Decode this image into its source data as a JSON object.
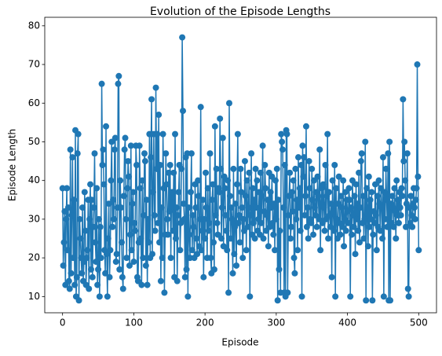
{
  "chart_data": {
    "type": "line",
    "title": "Evolution of the Episode Lengths",
    "x_label": "Episode",
    "y_label": "Episode Length",
    "color": "#1f77b4",
    "markers": true,
    "xlim": [
      -25,
      525
    ],
    "xticks": [
      0,
      100,
      200,
      300,
      400,
      500
    ],
    "ylim": [
      5.8,
      82.2
    ],
    "yticks": [
      10,
      20,
      30,
      40,
      50,
      60,
      70,
      80
    ],
    "x": [
      0,
      1,
      2,
      3,
      4,
      5,
      6,
      7,
      8,
      9,
      10,
      11,
      12,
      13,
      14,
      15,
      16,
      17,
      18,
      19,
      20,
      21,
      22,
      23,
      24,
      25,
      26,
      27,
      28,
      29,
      30,
      31,
      32,
      33,
      34,
      35,
      36,
      37,
      38,
      39,
      40,
      41,
      42,
      43,
      44,
      45,
      46,
      47,
      48,
      49,
      50,
      51,
      52,
      53,
      54,
      55,
      56,
      57,
      58,
      59,
      60,
      61,
      62,
      63,
      64,
      65,
      66,
      67,
      68,
      69,
      70,
      71,
      72,
      73,
      74,
      75,
      76,
      77,
      78,
      79,
      80,
      81,
      82,
      83,
      84,
      85,
      86,
      87,
      88,
      89,
      90,
      91,
      92,
      93,
      94,
      95,
      96,
      97,
      98,
      99,
      100,
      101,
      102,
      103,
      104,
      105,
      106,
      107,
      108,
      109,
      110,
      111,
      112,
      113,
      114,
      115,
      116,
      117,
      118,
      119,
      120,
      121,
      122,
      123,
      124,
      125,
      126,
      127,
      128,
      129,
      130,
      131,
      132,
      133,
      134,
      135,
      136,
      137,
      138,
      139,
      140,
      141,
      142,
      143,
      144,
      145,
      146,
      147,
      148,
      149,
      150,
      151,
      152,
      153,
      154,
      155,
      156,
      157,
      158,
      159,
      160,
      161,
      162,
      163,
      164,
      165,
      166,
      167,
      168,
      169,
      170,
      171,
      172,
      173,
      174,
      175,
      176,
      177,
      178,
      179,
      180,
      181,
      182,
      183,
      184,
      185,
      186,
      187,
      188,
      189,
      190,
      191,
      192,
      193,
      194,
      195,
      196,
      197,
      198,
      199,
      200,
      201,
      202,
      203,
      204,
      205,
      206,
      207,
      208,
      209,
      210,
      211,
      212,
      213,
      214,
      215,
      216,
      217,
      218,
      219,
      220,
      221,
      222,
      223,
      224,
      225,
      226,
      227,
      228,
      229,
      230,
      231,
      232,
      233,
      234,
      235,
      236,
      237,
      238,
      239,
      240,
      241,
      242,
      243,
      244,
      245,
      246,
      247,
      248,
      249,
      250,
      251,
      252,
      253,
      254,
      255,
      256,
      257,
      258,
      259,
      260,
      261,
      262,
      263,
      264,
      265,
      266,
      267,
      268,
      269,
      270,
      271,
      272,
      273,
      274,
      275,
      276,
      277,
      278,
      279,
      280,
      281,
      282,
      283,
      284,
      285,
      286,
      287,
      288,
      289,
      290,
      291,
      292,
      293,
      294,
      295,
      296,
      297,
      298,
      299,
      300,
      301,
      302,
      303,
      304,
      305,
      306,
      307,
      308,
      309,
      310,
      311,
      312,
      313,
      314,
      315,
      316,
      317,
      318,
      319,
      320,
      321,
      322,
      323,
      324,
      325,
      326,
      327,
      328,
      329,
      330,
      331,
      332,
      333,
      334,
      335,
      336,
      337,
      338,
      339,
      340,
      341,
      342,
      343,
      344,
      345,
      346,
      347,
      348,
      349,
      350,
      351,
      352,
      353,
      354,
      355,
      356,
      357,
      358,
      359,
      360,
      361,
      362,
      363,
      364,
      365,
      366,
      367,
      368,
      369,
      370,
      371,
      372,
      373,
      374,
      375,
      376,
      377,
      378,
      379,
      380,
      381,
      382,
      383,
      384,
      385,
      386,
      387,
      388,
      389,
      390,
      391,
      392,
      393,
      394,
      395,
      396,
      397,
      398,
      399,
      400,
      401,
      402,
      403,
      404,
      405,
      406,
      407,
      408,
      409,
      410,
      411,
      412,
      413,
      414,
      415,
      416,
      417,
      418,
      419,
      420,
      421,
      422,
      423,
      424,
      425,
      426,
      427,
      428,
      429,
      430,
      431,
      432,
      433,
      434,
      435,
      436,
      437,
      438,
      439,
      440,
      441,
      442,
      443,
      444,
      445,
      446,
      447,
      448,
      449,
      450,
      451,
      452,
      453,
      454,
      455,
      456,
      457,
      458,
      459,
      460,
      461,
      462,
      463,
      464,
      465,
      466,
      467,
      468,
      469,
      470,
      471,
      472,
      473,
      474,
      475,
      476,
      477,
      478,
      479,
      480,
      481,
      482,
      483,
      484,
      485,
      486,
      487,
      488,
      489,
      490,
      491,
      492,
      493,
      494,
      495,
      496,
      497,
      498,
      499,
      500
    ],
    "values": [
      38,
      18,
      24,
      32,
      13,
      30,
      38,
      22,
      33,
      14,
      12,
      48,
      16,
      31,
      46,
      20,
      35,
      13,
      53,
      10,
      15,
      47,
      52,
      9,
      30,
      25,
      20,
      16,
      33,
      14,
      19,
      37,
      27,
      13,
      20,
      22,
      35,
      12,
      30,
      39,
      17,
      35,
      15,
      28,
      33,
      47,
      24,
      19,
      38,
      13,
      17,
      30,
      10,
      28,
      20,
      65,
      44,
      48,
      39,
      22,
      16,
      54,
      21,
      10,
      25,
      34,
      15,
      22,
      40,
      50,
      28,
      35,
      30,
      48,
      51,
      19,
      21,
      33,
      65,
      67,
      17,
      40,
      33,
      24,
      15,
      12,
      36,
      48,
      51,
      30,
      20,
      38,
      45,
      41,
      18,
      26,
      49,
      22,
      34,
      37,
      19,
      29,
      27,
      49,
      44,
      15,
      14,
      24,
      49,
      38,
      25,
      13,
      40,
      20,
      31,
      47,
      45,
      18,
      35,
      13,
      30,
      24,
      52,
      20,
      46,
      61,
      21,
      37,
      52,
      31,
      27,
      64,
      43,
      52,
      29,
      57,
      24,
      44,
      14,
      33,
      20,
      52,
      38,
      11,
      26,
      47,
      39,
      30,
      26,
      42,
      32,
      44,
      20,
      36,
      37,
      27,
      42,
      15,
      52,
      25,
      33,
      14,
      31,
      37,
      44,
      22,
      29,
      43,
      77,
      58,
      34,
      30,
      15,
      46,
      17,
      47,
      10,
      33,
      26,
      20,
      37,
      47,
      22,
      31,
      28,
      20,
      39,
      33,
      25,
      21,
      40,
      36,
      23,
      30,
      59,
      22,
      27,
      35,
      15,
      30,
      25,
      42,
      33,
      20,
      38,
      27,
      29,
      47,
      20,
      16,
      35,
      39,
      24,
      17,
      54,
      31,
      43,
      29,
      26,
      38,
      37,
      56,
      43,
      25,
      33,
      51,
      23,
      41,
      38,
      31,
      27,
      22,
      40,
      11,
      60,
      36,
      25,
      33,
      30,
      16,
      43,
      21,
      28,
      34,
      18,
      39,
      52,
      29,
      31,
      24,
      43,
      37,
      33,
      20,
      30,
      27,
      45,
      36,
      22,
      40,
      28,
      33,
      42,
      10,
      31,
      47,
      26,
      38,
      29,
      35,
      25,
      43,
      33,
      40,
      27,
      30,
      37,
      26,
      42,
      29,
      36,
      49,
      25,
      32,
      44,
      38,
      27,
      31,
      35,
      23,
      42,
      28,
      37,
      33,
      41,
      29,
      26,
      34,
      22,
      40,
      30,
      43,
      9,
      35,
      17,
      27,
      11,
      52,
      50,
      48,
      33,
      11,
      44,
      10,
      53,
      52,
      11,
      31,
      36,
      42,
      25,
      28,
      37,
      32,
      40,
      20,
      16,
      43,
      30,
      35,
      22,
      46,
      33,
      38,
      27,
      44,
      10,
      49,
      41,
      46,
      31,
      36,
      54,
      28,
      33,
      25,
      45,
      38,
      30,
      29,
      43,
      35,
      26,
      40,
      33,
      31,
      37,
      28,
      41,
      36,
      30,
      48,
      22,
      34,
      38,
      29,
      39,
      33,
      27,
      44,
      30,
      36,
      52,
      25,
      37,
      31,
      28,
      34,
      15,
      40,
      32,
      27,
      44,
      10,
      38,
      30,
      25,
      34,
      41,
      29,
      26,
      36,
      33,
      28,
      40,
      23,
      30,
      37,
      27,
      35,
      32,
      29,
      38,
      35,
      10,
      33,
      26,
      40,
      31,
      28,
      36,
      21,
      39,
      30,
      34,
      27,
      42,
      24,
      33,
      45,
      47,
      29,
      36,
      25,
      30,
      50,
      9,
      38,
      33,
      23,
      41,
      28,
      35,
      30,
      37,
      9,
      26,
      32,
      29,
      39,
      31,
      22,
      36,
      28,
      40,
      34,
      27,
      38,
      33,
      25,
      46,
      10,
      37,
      30,
      43,
      35,
      28,
      47,
      9,
      50,
      9,
      34,
      29,
      36,
      33,
      28,
      38,
      32,
      25,
      40,
      31,
      35,
      29,
      37,
      33,
      31,
      38,
      36,
      61,
      45,
      50,
      40,
      28,
      34,
      47,
      12,
      10,
      33,
      29,
      36,
      31,
      28,
      34,
      38,
      33,
      30,
      35,
      38,
      70,
      41,
      22
    ]
  }
}
